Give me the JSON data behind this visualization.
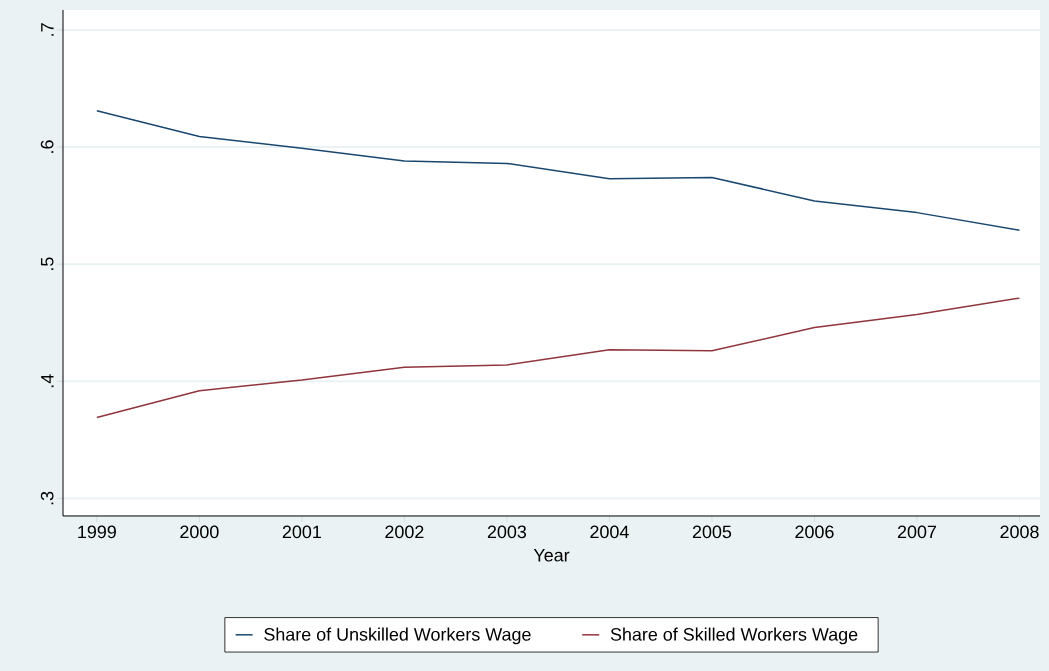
{
  "chart_data": {
    "type": "line",
    "xlabel": "Year",
    "x": [
      1999,
      2000,
      2001,
      2002,
      2003,
      2004,
      2005,
      2006,
      2007,
      2008
    ],
    "series": [
      {
        "name": "Share of Unskilled Workers Wage",
        "color": "#1a476f",
        "values": [
          0.631,
          0.609,
          0.599,
          0.588,
          0.586,
          0.573,
          0.574,
          0.554,
          0.544,
          0.529
        ]
      },
      {
        "name": "Share of Skilled Workers Wage",
        "color": "#90353b",
        "values": [
          0.369,
          0.392,
          0.401,
          0.412,
          0.414,
          0.427,
          0.426,
          0.446,
          0.457,
          0.471
        ]
      }
    ],
    "xlim": [
      1998.67,
      2008.2
    ],
    "ylim": [
      0.285,
      0.717
    ],
    "xticks": [
      1999,
      2000,
      2001,
      2002,
      2003,
      2004,
      2005,
      2006,
      2007,
      2008
    ],
    "yticks": [
      {
        "value": 0.3,
        "label": ".3"
      },
      {
        "value": 0.4,
        "label": ".4"
      },
      {
        "value": 0.5,
        "label": ".5"
      },
      {
        "value": 0.6,
        "label": ".6"
      },
      {
        "value": 0.7,
        "label": ".7"
      }
    ],
    "grid": "y",
    "legend": "bottom",
    "marker": "none",
    "line_style": "solid"
  }
}
